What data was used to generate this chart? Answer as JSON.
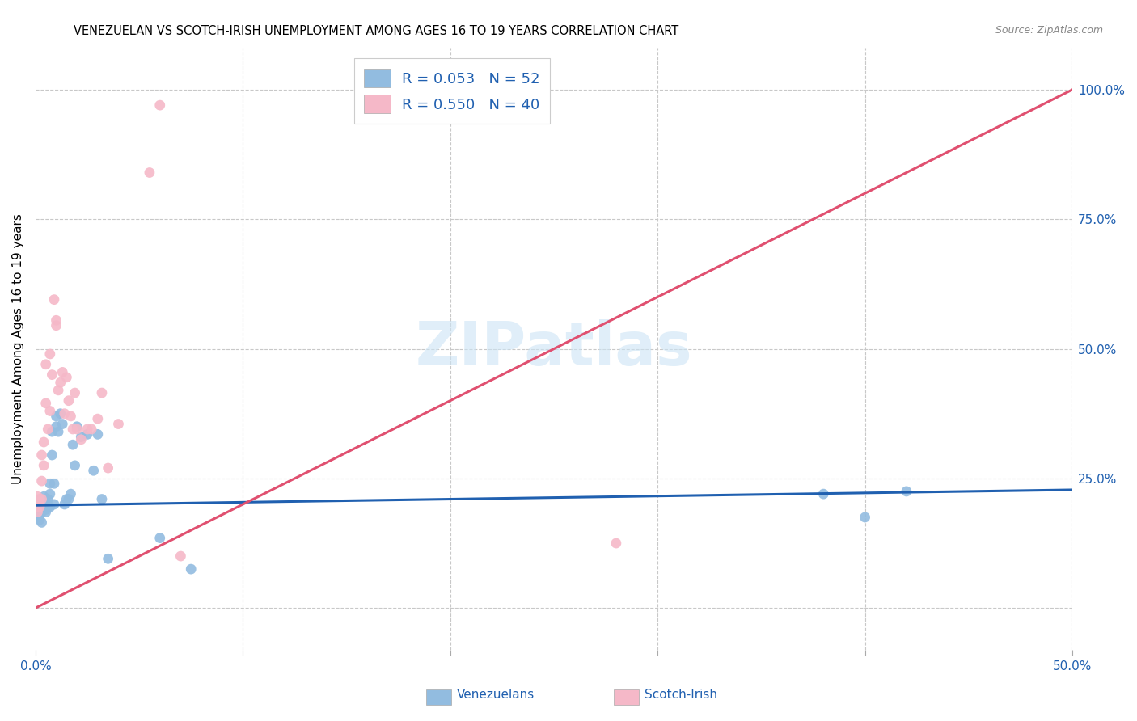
{
  "title": "VENEZUELAN VS SCOTCH-IRISH UNEMPLOYMENT AMONG AGES 16 TO 19 YEARS CORRELATION CHART",
  "source": "Source: ZipAtlas.com",
  "ylabel": "Unemployment Among Ages 16 to 19 years",
  "xlim": [
    0.0,
    0.5
  ],
  "ylim": [
    -0.08,
    1.08
  ],
  "yticks_right": [
    0.0,
    0.25,
    0.5,
    0.75,
    1.0
  ],
  "yticklabels_right": [
    "",
    "25.0%",
    "50.0%",
    "75.0%",
    "100.0%"
  ],
  "background_color": "#ffffff",
  "grid_color": "#c8c8c8",
  "watermark_text": "ZIPatlas",
  "venezuelan_color": "#92bce0",
  "scotch_irish_color": "#f5b8c8",
  "venezuelan_line_color": "#2060b0",
  "scotch_irish_line_color": "#e05070",
  "venezuelan_R": 0.053,
  "venezuelan_N": 52,
  "scotch_irish_R": 0.55,
  "scotch_irish_N": 40,
  "venezuelan_x": [
    0.0,
    0.0,
    0.001,
    0.001,
    0.001,
    0.002,
    0.002,
    0.002,
    0.002,
    0.003,
    0.003,
    0.003,
    0.003,
    0.004,
    0.004,
    0.004,
    0.005,
    0.005,
    0.005,
    0.005,
    0.006,
    0.006,
    0.007,
    0.007,
    0.007,
    0.008,
    0.008,
    0.009,
    0.009,
    0.01,
    0.01,
    0.011,
    0.012,
    0.013,
    0.014,
    0.015,
    0.016,
    0.017,
    0.018,
    0.019,
    0.02,
    0.022,
    0.025,
    0.028,
    0.03,
    0.032,
    0.035,
    0.06,
    0.075,
    0.38,
    0.4,
    0.42
  ],
  "venezuelan_y": [
    0.195,
    0.185,
    0.19,
    0.2,
    0.175,
    0.195,
    0.205,
    0.18,
    0.17,
    0.195,
    0.185,
    0.21,
    0.165,
    0.195,
    0.205,
    0.215,
    0.185,
    0.195,
    0.205,
    0.19,
    0.21,
    0.195,
    0.195,
    0.22,
    0.24,
    0.295,
    0.34,
    0.24,
    0.2,
    0.35,
    0.37,
    0.34,
    0.375,
    0.355,
    0.2,
    0.21,
    0.21,
    0.22,
    0.315,
    0.275,
    0.35,
    0.33,
    0.335,
    0.265,
    0.335,
    0.21,
    0.095,
    0.135,
    0.075,
    0.22,
    0.175,
    0.225
  ],
  "scotch_irish_x": [
    0.0,
    0.001,
    0.001,
    0.002,
    0.002,
    0.003,
    0.003,
    0.003,
    0.004,
    0.004,
    0.005,
    0.005,
    0.006,
    0.007,
    0.007,
    0.008,
    0.009,
    0.01,
    0.01,
    0.011,
    0.012,
    0.013,
    0.014,
    0.015,
    0.016,
    0.017,
    0.018,
    0.019,
    0.02,
    0.022,
    0.025,
    0.027,
    0.03,
    0.032,
    0.035,
    0.04,
    0.055,
    0.06,
    0.07,
    0.28
  ],
  "scotch_irish_y": [
    0.195,
    0.215,
    0.185,
    0.21,
    0.195,
    0.21,
    0.245,
    0.295,
    0.275,
    0.32,
    0.395,
    0.47,
    0.345,
    0.49,
    0.38,
    0.45,
    0.595,
    0.545,
    0.555,
    0.42,
    0.435,
    0.455,
    0.375,
    0.445,
    0.4,
    0.37,
    0.345,
    0.415,
    0.345,
    0.325,
    0.345,
    0.345,
    0.365,
    0.415,
    0.27,
    0.355,
    0.84,
    0.97,
    0.1,
    0.125
  ],
  "venezuelan_trendline_x": [
    0.0,
    0.5
  ],
  "venezuelan_trendline_y": [
    0.198,
    0.228
  ],
  "scotch_irish_trendline_x": [
    0.0,
    0.5
  ],
  "scotch_irish_trendline_y": [
    0.0,
    1.0
  ],
  "title_fontsize": 10.5,
  "source_fontsize": 9,
  "legend_fontsize": 13,
  "axis_label_fontsize": 11,
  "tick_fontsize": 11,
  "marker_size": 85
}
